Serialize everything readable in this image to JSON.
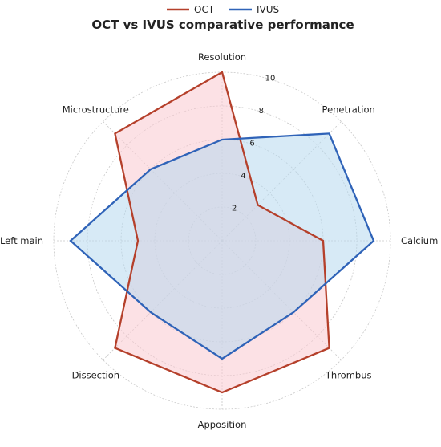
{
  "chart_data": {
    "type": "radar",
    "title": "OCT vs IVUS comparative performance",
    "axes": [
      "Resolution",
      "Penetration",
      "Calcium",
      "Thrombus",
      "Apposition",
      "Dissection",
      "Left main",
      "Microstructure"
    ],
    "rlim": [
      0,
      10
    ],
    "rticks": [
      2,
      4,
      6,
      8,
      10
    ],
    "rtick_labels": [
      "2",
      "4",
      "6",
      "8",
      "10"
    ],
    "grid": true,
    "legend": "top-center",
    "series": [
      {
        "name": "OCT",
        "values": [
          10,
          3,
          6,
          9,
          9,
          9,
          5,
          9
        ],
        "color": "#b5402b",
        "fill": "#f9c8cf"
      },
      {
        "name": "IVUS",
        "values": [
          6,
          9,
          9,
          6,
          7,
          6,
          9,
          6
        ],
        "color": "#2f63b8",
        "fill": "#b6d9ef"
      }
    ]
  }
}
